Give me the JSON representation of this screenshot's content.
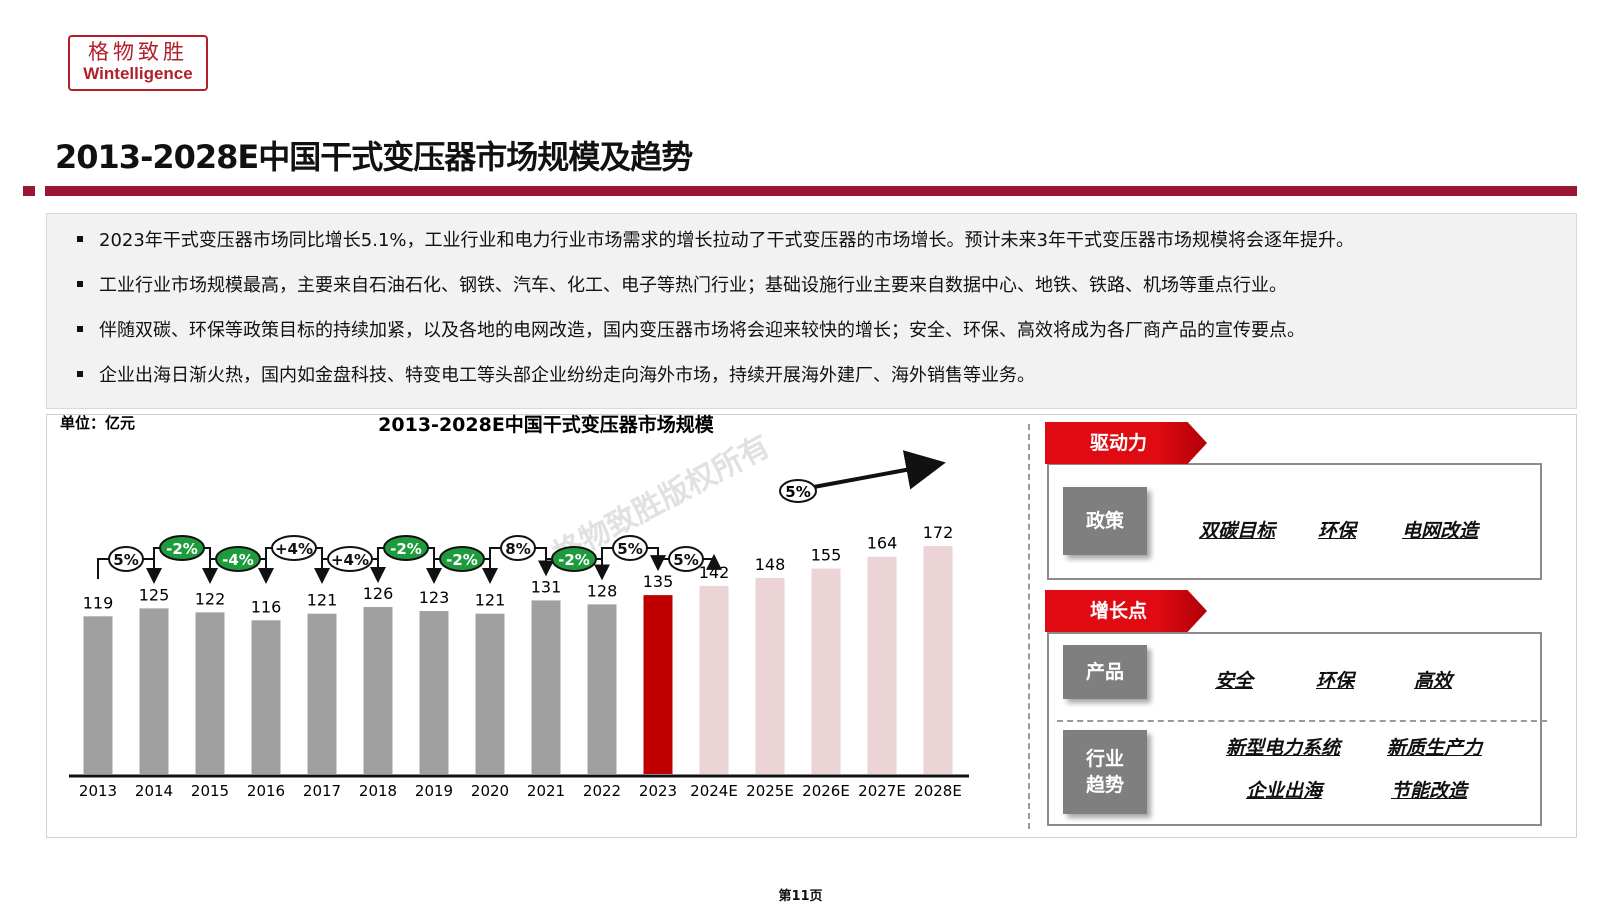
{
  "logo": {
    "cn": "格物致胜",
    "en": "Wintelligence"
  },
  "page_title": "2013-2028E中国干式变压器市场规模及趋势",
  "bullets": [
    "2023年干式变压器市场同比增长5.1%，工业行业和电力行业市场需求的增长拉动了干式变压器的市场增长。预计未来3年干式变压器市场规模将会逐年提升。",
    "工业行业市场规模最高，主要来自石油石化、钢铁、汽车、化工、电子等热门行业；基础设施行业主要来自数据中心、地铁、铁路、机场等重点行业。",
    "伴随双碳、环保等政策目标的持续加紧，以及各地的电网改造，国内变压器市场将会迎来较快的增长；安全、环保、高效将成为各厂商产品的宣传要点。",
    "企业出海日渐火热，国内如金盘科技、特变电工等头部企业纷纷走向海外市场，持续开展海外建厂、海外销售等业务。"
  ],
  "chart_data": {
    "type": "bar",
    "title": "2013-2028E中国干式变压器市场规模",
    "unit_label": "单位：亿元",
    "watermark": "格物致胜版权所有",
    "categories": [
      "2013",
      "2014",
      "2015",
      "2016",
      "2017",
      "2018",
      "2019",
      "2020",
      "2021",
      "2022",
      "2023",
      "2024E",
      "2025E",
      "2026E",
      "2027E",
      "2028E"
    ],
    "values": [
      119,
      125,
      122,
      116,
      121,
      126,
      123,
      121,
      131,
      128,
      135,
      142,
      148,
      155,
      164,
      172
    ],
    "bar_kind": [
      "actual",
      "actual",
      "actual",
      "actual",
      "actual",
      "actual",
      "actual",
      "actual",
      "actual",
      "actual",
      "current",
      "forecast",
      "forecast",
      "forecast",
      "forecast",
      "forecast"
    ],
    "growth_labels": [
      {
        "from": 0,
        "text": "5%",
        "kind": "pos"
      },
      {
        "from": 1,
        "text": "-2%",
        "kind": "neg"
      },
      {
        "from": 2,
        "text": "-4%",
        "kind": "neg"
      },
      {
        "from": 3,
        "text": "+4%",
        "kind": "pos"
      },
      {
        "from": 4,
        "text": "+4%",
        "kind": "pos"
      },
      {
        "from": 5,
        "text": "-2%",
        "kind": "neg"
      },
      {
        "from": 6,
        "text": "-2%",
        "kind": "neg"
      },
      {
        "from": 7,
        "text": "8%",
        "kind": "pos"
      },
      {
        "from": 8,
        "text": "-2%",
        "kind": "neg"
      },
      {
        "from": 9,
        "text": "5%",
        "kind": "pos"
      },
      {
        "from": 10,
        "text": "5%",
        "kind": "pos"
      }
    ],
    "trend_label": "5%",
    "colors": {
      "actual": "#a0a0a0",
      "current": "#c00000",
      "forecast": "#ecd3d6",
      "neg": "#1e9b3c",
      "pos": "#ffffff"
    }
  },
  "drivers": {
    "header": "驱动力",
    "rows": [
      {
        "tile": "政策",
        "items": [
          "双碳目标",
          "环保",
          "电网改造"
        ]
      }
    ]
  },
  "growth_points": {
    "header": "增长点",
    "rows": [
      {
        "tile": "产品",
        "items": [
          "安全",
          "环保",
          "高效"
        ]
      },
      {
        "tile": "行业趋势",
        "items": [
          "新型电力系统",
          "新质生产力",
          "企业出海",
          "节能改造"
        ]
      }
    ]
  },
  "footer": "第11页"
}
